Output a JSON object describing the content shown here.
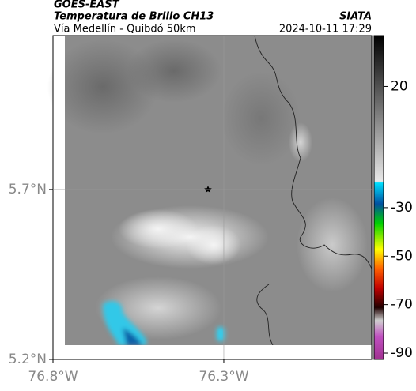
{
  "header": {
    "title": "GOES-EAST",
    "subtitle": "Temperatura de Brillo CH13",
    "source": "SIATA",
    "area": "Vía Medellín - Quibdó 50km",
    "timestamp": "2024-10-11 17:29"
  },
  "chart_data": {
    "type": "map",
    "xlim": [
      -76.8,
      -75.867
    ],
    "ylim": [
      5.2,
      6.153
    ],
    "xticks": [
      {
        "value": -76.8,
        "label": "76.8°W"
      },
      {
        "value": -76.3,
        "label": "76.3°W"
      }
    ],
    "yticks": [
      {
        "value": 5.2,
        "label": "5.2°N"
      },
      {
        "value": 5.7,
        "label": "5.7°N"
      }
    ],
    "colorbar": {
      "lim": [
        41,
        -92.6
      ],
      "ticks": [
        20,
        -30,
        -50,
        -70,
        -90
      ]
    },
    "grid": true
  }
}
